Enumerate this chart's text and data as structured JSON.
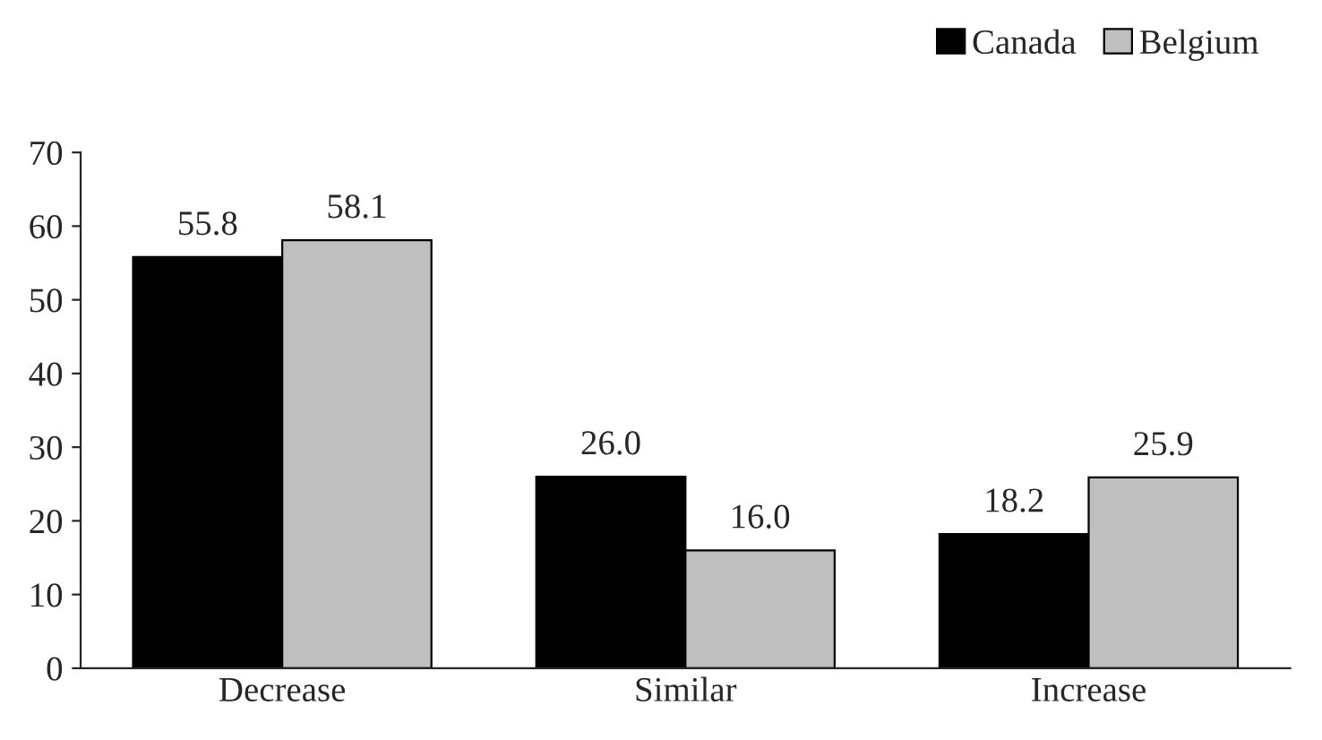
{
  "chart_data": {
    "type": "bar",
    "categories": [
      "Decrease",
      "Similar",
      "Increase"
    ],
    "series": [
      {
        "name": "Canada",
        "color": "#000000",
        "values": [
          55.8,
          26.0,
          18.2
        ],
        "value_labels": [
          "55.8",
          "26.0",
          "18.2"
        ]
      },
      {
        "name": "Belgium",
        "color": "#bfbfbf",
        "values": [
          58.1,
          16.0,
          25.9
        ],
        "value_labels": [
          "58.1",
          "16.0",
          "25.9"
        ]
      }
    ],
    "ylim": [
      0,
      70
    ],
    "yticks": [
      0,
      10,
      20,
      30,
      40,
      50,
      60,
      70
    ],
    "legend": "top right",
    "grid": false
  }
}
